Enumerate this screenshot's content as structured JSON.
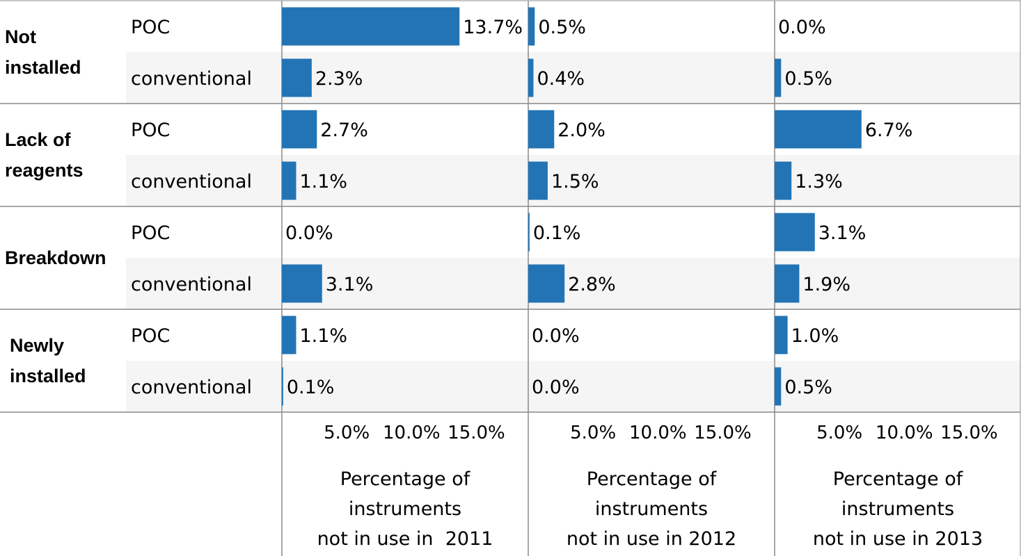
{
  "chart_data": {
    "type": "bar",
    "orientation": "horizontal",
    "bar_color": "#2274b5",
    "groups": [
      {
        "label_lines": [
          "Not",
          "installed"
        ],
        "subcategories": [
          "POC",
          "conventional"
        ]
      },
      {
        "label_lines": [
          "Lack of",
          "reagents"
        ],
        "subcategories": [
          "POC",
          "conventional"
        ]
      },
      {
        "label_lines": [
          "Breakdown"
        ],
        "subcategories": [
          "POC",
          "conventional"
        ]
      },
      {
        "label_lines": [
          "Newly",
          "installed"
        ],
        "subcategories": [
          "POC",
          "conventional"
        ]
      }
    ],
    "panels": [
      {
        "axis_title_lines": [
          "Percentage of",
          "instruments",
          "not in use in  2011"
        ],
        "values": [
          13.7,
          2.3,
          2.7,
          1.1,
          0.0,
          3.1,
          1.1,
          0.1
        ],
        "labels": [
          "13.7%",
          "2.3%",
          "2.7%",
          "1.1%",
          "0.0%",
          "3.1%",
          "1.1%",
          "0.1%"
        ]
      },
      {
        "axis_title_lines": [
          "Percentage of",
          "instruments",
          "not in use in 2012"
        ],
        "values": [
          0.5,
          0.4,
          2.0,
          1.5,
          0.1,
          2.8,
          0.0,
          0.0
        ],
        "labels": [
          "0.5%",
          "0.4%",
          "2.0%",
          "1.5%",
          "0.1%",
          "2.8%",
          "0.0%",
          "0.0%"
        ]
      },
      {
        "axis_title_lines": [
          "Percentage of",
          "instruments",
          "not in use in 2013"
        ],
        "values": [
          0.0,
          0.5,
          6.7,
          1.3,
          3.1,
          1.9,
          1.0,
          0.5
        ],
        "labels": [
          "0.0%",
          "0.5%",
          "6.7%",
          "1.3%",
          "3.1%",
          "1.9%",
          "1.0%",
          "0.5%"
        ]
      }
    ],
    "x_ticks": [
      5,
      10,
      15
    ],
    "x_tick_labels": [
      "5.0%",
      "10.0%",
      "15.0%"
    ],
    "xlim": [
      0,
      19
    ],
    "grid": false,
    "alternate_row_shading": "#f5f5f5",
    "legend": "none"
  }
}
